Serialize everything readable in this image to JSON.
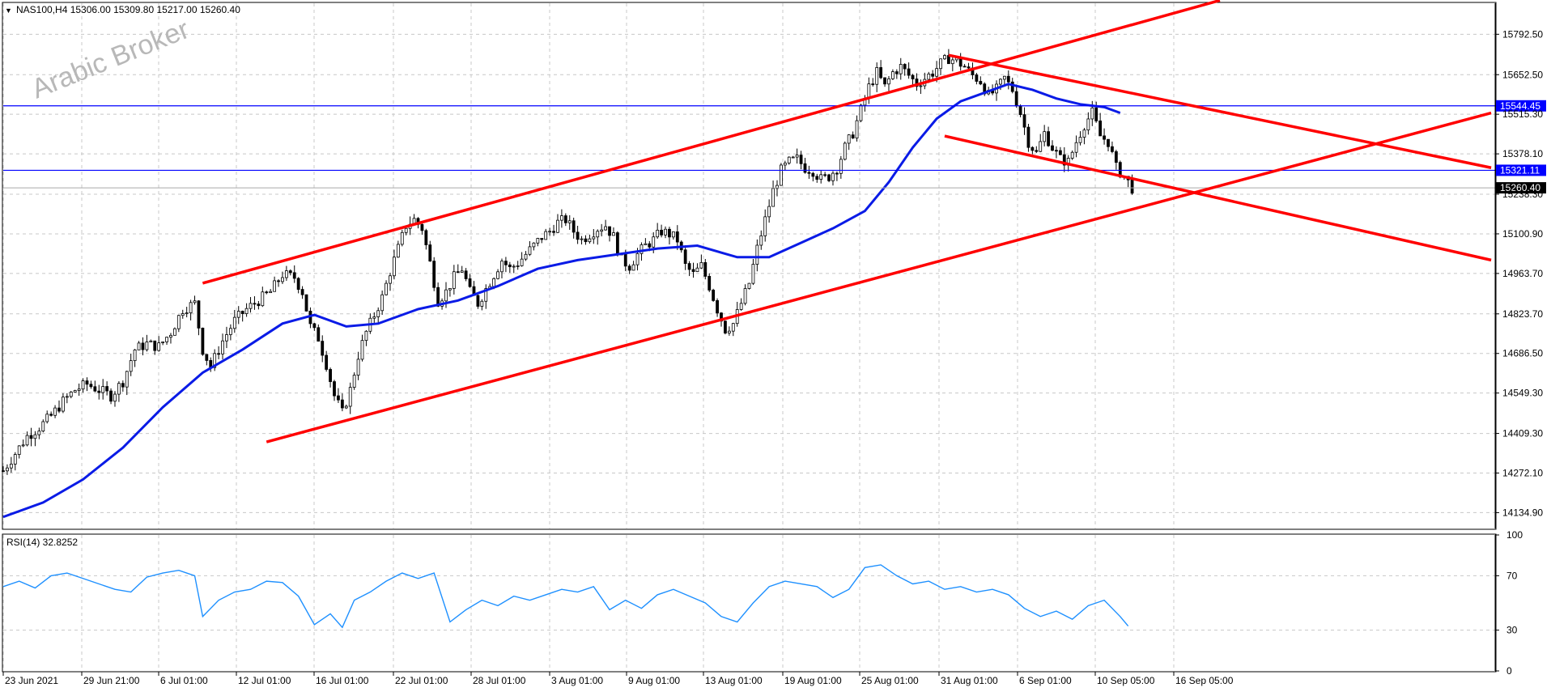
{
  "header": {
    "symbol_line": "NAS100,H4  15306.00 15309.80 15217.00 15260.40",
    "watermark": "Arabic Broker"
  },
  "colors": {
    "channel": "#ff0000",
    "ma": "#0a1be6",
    "hline": "#0000ff",
    "rsi": "#1e90ff",
    "grid": "#c8c8c8",
    "candle": "#000000",
    "bid_line": "#a9a9a9"
  },
  "chart_data": [
    {
      "type": "candlestick",
      "symbol": "NAS100",
      "timeframe": "H4",
      "ohlc_last": {
        "open": 15306.0,
        "high": 15309.8,
        "low": 15217.0,
        "close": 15260.4
      },
      "ylim": [
        14080,
        15900
      ],
      "y_ticks": [
        "15792.50",
        "15652.50",
        "15515.30",
        "15378.10",
        "15238.30",
        "15100.90",
        "14963.70",
        "14823.70",
        "14686.50",
        "14549.30",
        "14409.30",
        "14272.10",
        "14134.90"
      ],
      "x_ticks": [
        "23 Jun 2021",
        "29 Jun 21:00",
        "6 Jul 01:00",
        "12 Jul 01:00",
        "16 Jul 01:00",
        "22 Jul 01:00",
        "28 Jul 01:00",
        "3 Aug 01:00",
        "9 Aug 01:00",
        "13 Aug 01:00",
        "19 Aug 01:00",
        "25 Aug 01:00",
        "31 Aug 01:00",
        "6 Sep 01:00",
        "10 Sep 05:00",
        "16 Sep 05:00"
      ],
      "close_path": [
        [
          0,
          14280
        ],
        [
          3,
          14340
        ],
        [
          6,
          14400
        ],
        [
          9,
          14430
        ],
        [
          12,
          14470
        ],
        [
          15,
          14520
        ],
        [
          18,
          14560
        ],
        [
          21,
          14580
        ],
        [
          24,
          14560
        ],
        [
          27,
          14540
        ],
        [
          30,
          14590
        ],
        [
          33,
          14700
        ],
        [
          36,
          14720
        ],
        [
          39,
          14710
        ],
        [
          42,
          14760
        ],
        [
          45,
          14840
        ],
        [
          48,
          14860
        ],
        [
          50,
          14700
        ],
        [
          52,
          14640
        ],
        [
          55,
          14730
        ],
        [
          58,
          14800
        ],
        [
          61,
          14840
        ],
        [
          64,
          14870
        ],
        [
          67,
          14900
        ],
        [
          70,
          14960
        ],
        [
          73,
          14950
        ],
        [
          75,
          14900
        ],
        [
          77,
          14780
        ],
        [
          79,
          14740
        ],
        [
          81,
          14650
        ],
        [
          83,
          14540
        ],
        [
          85,
          14480
        ],
        [
          87,
          14560
        ],
        [
          89,
          14680
        ],
        [
          91,
          14760
        ],
        [
          93,
          14820
        ],
        [
          95,
          14880
        ],
        [
          97,
          14970
        ],
        [
          99,
          15050
        ],
        [
          101,
          15130
        ],
        [
          103,
          15150
        ],
        [
          105,
          15120
        ],
        [
          107,
          15000
        ],
        [
          109,
          14870
        ],
        [
          111,
          14900
        ],
        [
          113,
          14950
        ],
        [
          115,
          14980
        ],
        [
          117,
          14900
        ],
        [
          119,
          14860
        ],
        [
          121,
          14910
        ],
        [
          123,
          14960
        ],
        [
          125,
          15010
        ],
        [
          127,
          14980
        ],
        [
          129,
          15000
        ],
        [
          131,
          15030
        ],
        [
          133,
          15060
        ],
        [
          135,
          15090
        ],
        [
          137,
          15110
        ],
        [
          139,
          15140
        ],
        [
          141,
          15150
        ],
        [
          143,
          15110
        ],
        [
          145,
          15080
        ],
        [
          147,
          15100
        ],
        [
          149,
          15120
        ],
        [
          151,
          15130
        ],
        [
          153,
          15090
        ],
        [
          155,
          15010
        ],
        [
          157,
          14990
        ],
        [
          159,
          15030
        ],
        [
          161,
          15060
        ],
        [
          163,
          15080
        ],
        [
          165,
          15110
        ],
        [
          167,
          15100
        ],
        [
          169,
          15080
        ],
        [
          171,
          14990
        ],
        [
          173,
          14960
        ],
        [
          175,
          14990
        ],
        [
          177,
          14920
        ],
        [
          179,
          14840
        ],
        [
          181,
          14770
        ],
        [
          183,
          14790
        ],
        [
          185,
          14860
        ],
        [
          187,
          14930
        ],
        [
          189,
          15050
        ],
        [
          191,
          15150
        ],
        [
          193,
          15250
        ],
        [
          195,
          15320
        ],
        [
          197,
          15350
        ],
        [
          199,
          15360
        ],
        [
          201,
          15330
        ],
        [
          203,
          15320
        ],
        [
          205,
          15290
        ],
        [
          207,
          15300
        ],
        [
          209,
          15330
        ],
        [
          211,
          15400
        ],
        [
          213,
          15450
        ],
        [
          215,
          15530
        ],
        [
          217,
          15610
        ],
        [
          219,
          15660
        ],
        [
          221,
          15610
        ],
        [
          223,
          15660
        ],
        [
          225,
          15680
        ],
        [
          227,
          15650
        ],
        [
          229,
          15620
        ],
        [
          231,
          15640
        ],
        [
          233,
          15660
        ],
        [
          235,
          15690
        ],
        [
          237,
          15710
        ],
        [
          239,
          15700
        ],
        [
          241,
          15680
        ],
        [
          243,
          15650
        ],
        [
          245,
          15630
        ],
        [
          247,
          15580
        ],
        [
          249,
          15600
        ],
        [
          251,
          15640
        ],
        [
          253,
          15600
        ],
        [
          255,
          15520
        ],
        [
          257,
          15420
        ],
        [
          259,
          15380
        ],
        [
          261,
          15450
        ],
        [
          263,
          15400
        ],
        [
          265,
          15360
        ],
        [
          267,
          15350
        ],
        [
          269,
          15420
        ],
        [
          271,
          15480
        ],
        [
          273,
          15520
        ],
        [
          275,
          15440
        ],
        [
          277,
          15420
        ],
        [
          279,
          15330
        ],
        [
          281,
          15300
        ],
        [
          283,
          15260
        ]
      ],
      "ma_path": [
        [
          0,
          14120
        ],
        [
          10,
          14170
        ],
        [
          20,
          14250
        ],
        [
          30,
          14360
        ],
        [
          40,
          14500
        ],
        [
          50,
          14620
        ],
        [
          60,
          14700
        ],
        [
          70,
          14790
        ],
        [
          78,
          14820
        ],
        [
          86,
          14780
        ],
        [
          94,
          14790
        ],
        [
          104,
          14840
        ],
        [
          114,
          14870
        ],
        [
          124,
          14920
        ],
        [
          134,
          14980
        ],
        [
          144,
          15010
        ],
        [
          154,
          15030
        ],
        [
          164,
          15050
        ],
        [
          174,
          15060
        ],
        [
          184,
          15020
        ],
        [
          192,
          15020
        ],
        [
          200,
          15070
        ],
        [
          208,
          15120
        ],
        [
          216,
          15180
        ],
        [
          222,
          15280
        ],
        [
          228,
          15400
        ],
        [
          234,
          15500
        ],
        [
          240,
          15560
        ],
        [
          246,
          15590
        ],
        [
          252,
          15620
        ],
        [
          258,
          15600
        ],
        [
          264,
          15570
        ],
        [
          270,
          15550
        ],
        [
          276,
          15540
        ],
        [
          280,
          15520
        ]
      ],
      "levels": [
        15544.45,
        15321.11
      ],
      "last_price": 15260.4,
      "channel_lines": [
        {
          "name": "ascending-upper",
          "from": [
            50,
            14930
          ],
          "to": [
            305,
            15910
          ]
        },
        {
          "name": "ascending-lower",
          "from": [
            66,
            14380
          ],
          "to": [
            373,
            15520
          ]
        },
        {
          "name": "descending-upper",
          "from": [
            237,
            15720
          ],
          "to": [
            373,
            15330
          ]
        },
        {
          "name": "descending-lower",
          "from": [
            236,
            15440
          ],
          "to": [
            373,
            15010
          ]
        }
      ],
      "x_range": [
        0,
        374
      ]
    },
    {
      "type": "line",
      "title": "RSI(14) 32.8252",
      "ylim": [
        0,
        100
      ],
      "y_ticks": [
        "100",
        "70",
        "30",
        "0"
      ],
      "values_path": [
        [
          0,
          62
        ],
        [
          4,
          66
        ],
        [
          8,
          61
        ],
        [
          12,
          70
        ],
        [
          16,
          72
        ],
        [
          20,
          68
        ],
        [
          24,
          64
        ],
        [
          28,
          60
        ],
        [
          32,
          58
        ],
        [
          36,
          69
        ],
        [
          40,
          72
        ],
        [
          44,
          74
        ],
        [
          48,
          70
        ],
        [
          50,
          40
        ],
        [
          54,
          52
        ],
        [
          58,
          58
        ],
        [
          62,
          60
        ],
        [
          66,
          66
        ],
        [
          70,
          65
        ],
        [
          74,
          55
        ],
        [
          78,
          34
        ],
        [
          82,
          42
        ],
        [
          85,
          32
        ],
        [
          88,
          52
        ],
        [
          92,
          58
        ],
        [
          96,
          66
        ],
        [
          100,
          72
        ],
        [
          104,
          68
        ],
        [
          108,
          72
        ],
        [
          112,
          36
        ],
        [
          116,
          45
        ],
        [
          120,
          52
        ],
        [
          124,
          48
        ],
        [
          128,
          55
        ],
        [
          132,
          52
        ],
        [
          136,
          56
        ],
        [
          140,
          60
        ],
        [
          144,
          58
        ],
        [
          148,
          62
        ],
        [
          152,
          45
        ],
        [
          156,
          52
        ],
        [
          160,
          46
        ],
        [
          164,
          56
        ],
        [
          168,
          60
        ],
        [
          172,
          55
        ],
        [
          176,
          50
        ],
        [
          180,
          40
        ],
        [
          184,
          36
        ],
        [
          188,
          50
        ],
        [
          192,
          62
        ],
        [
          196,
          66
        ],
        [
          200,
          64
        ],
        [
          204,
          62
        ],
        [
          208,
          54
        ],
        [
          212,
          60
        ],
        [
          216,
          76
        ],
        [
          220,
          78
        ],
        [
          224,
          70
        ],
        [
          228,
          64
        ],
        [
          232,
          66
        ],
        [
          236,
          60
        ],
        [
          240,
          62
        ],
        [
          244,
          58
        ],
        [
          248,
          60
        ],
        [
          252,
          56
        ],
        [
          256,
          46
        ],
        [
          260,
          40
        ],
        [
          264,
          44
        ],
        [
          268,
          38
        ],
        [
          272,
          48
        ],
        [
          276,
          52
        ],
        [
          280,
          40
        ],
        [
          282,
          33
        ]
      ]
    }
  ]
}
